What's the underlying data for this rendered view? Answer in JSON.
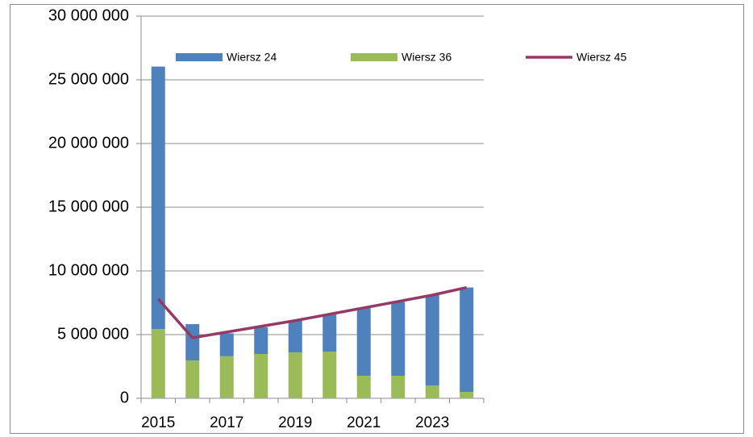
{
  "chart_data": {
    "type": "bar",
    "categories": [
      "2015",
      null,
      "2017",
      null,
      "2019",
      null,
      "2021",
      null,
      "2023",
      null
    ],
    "series": [
      {
        "name": "Wiersz 24",
        "type": "bar",
        "color": "#4f81bd",
        "values": [
          20600000,
          2850000,
          1800000,
          2100000,
          2500000,
          2900000,
          5300000,
          5800000,
          7100000,
          8200000
        ]
      },
      {
        "name": "Wiersz 36",
        "type": "bar",
        "color": "#9bbb59",
        "values": [
          5440000,
          2970000,
          3300000,
          3480000,
          3600000,
          3670000,
          1770000,
          1770000,
          1000000,
          500000
        ]
      },
      {
        "name": "Wiersz 45",
        "type": "line",
        "color": "#953a64",
        "values": [
          7800000,
          4750000,
          5200000,
          5650000,
          6100000,
          6600000,
          7100000,
          7600000,
          8100000,
          8700000
        ]
      }
    ],
    "ylim": [
      0,
      30000000
    ],
    "yticks": [
      0,
      {
        "value": 5000000,
        "label": "5 000 000"
      },
      {
        "value": 10000000,
        "label": "10 000 000"
      },
      {
        "value": 15000000,
        "label": "15 000 000"
      },
      {
        "value": 20000000,
        "label": "20 000 000"
      },
      {
        "value": 25000000,
        "label": "25 000 000"
      },
      {
        "value": 30000000,
        "label": "30 000 000"
      }
    ],
    "grid": true,
    "stacked": true,
    "legend": "top"
  }
}
